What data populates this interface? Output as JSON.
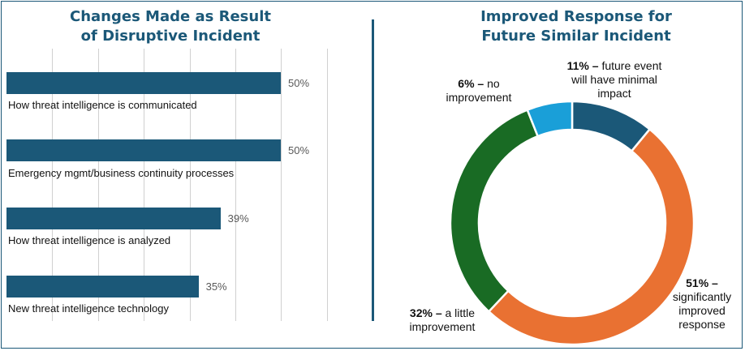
{
  "chart_data": [
    {
      "type": "bar",
      "orientation": "horizontal",
      "title_line1": "Changes Made as Result",
      "title_line2": "of Disruptive Incident",
      "categories": [
        "How threat intelligence is communicated",
        "Emergency mgmt/business continuity processes",
        "How threat intelligence is analyzed",
        "New threat intelligence technology"
      ],
      "values": [
        50,
        50,
        39,
        35
      ],
      "value_labels": [
        "50%",
        "50%",
        "39%",
        "35%"
      ],
      "xlim": [
        0,
        60
      ],
      "grid": true,
      "bar_color": "#1b5878"
    },
    {
      "type": "pie",
      "donut": true,
      "title_line1": "Improved Response for",
      "title_line2": "Future Similar Incident",
      "slices": [
        {
          "value": 11,
          "pct": "11% –",
          "desc1": "future event",
          "desc2": "will have minimal",
          "desc3": "impact",
          "color": "#1b5878"
        },
        {
          "value": 51,
          "pct": "51% –",
          "desc1": "significantly",
          "desc2": "improved",
          "desc3": "response",
          "color": "#e97132"
        },
        {
          "value": 32,
          "pct": "32% –",
          "desc1": "a little",
          "desc2": "improvement",
          "color": "#196b24"
        },
        {
          "value": 6,
          "pct": "6% –",
          "desc1": "no",
          "desc2": "improvement",
          "color": "#1a9fd8"
        }
      ]
    }
  ]
}
